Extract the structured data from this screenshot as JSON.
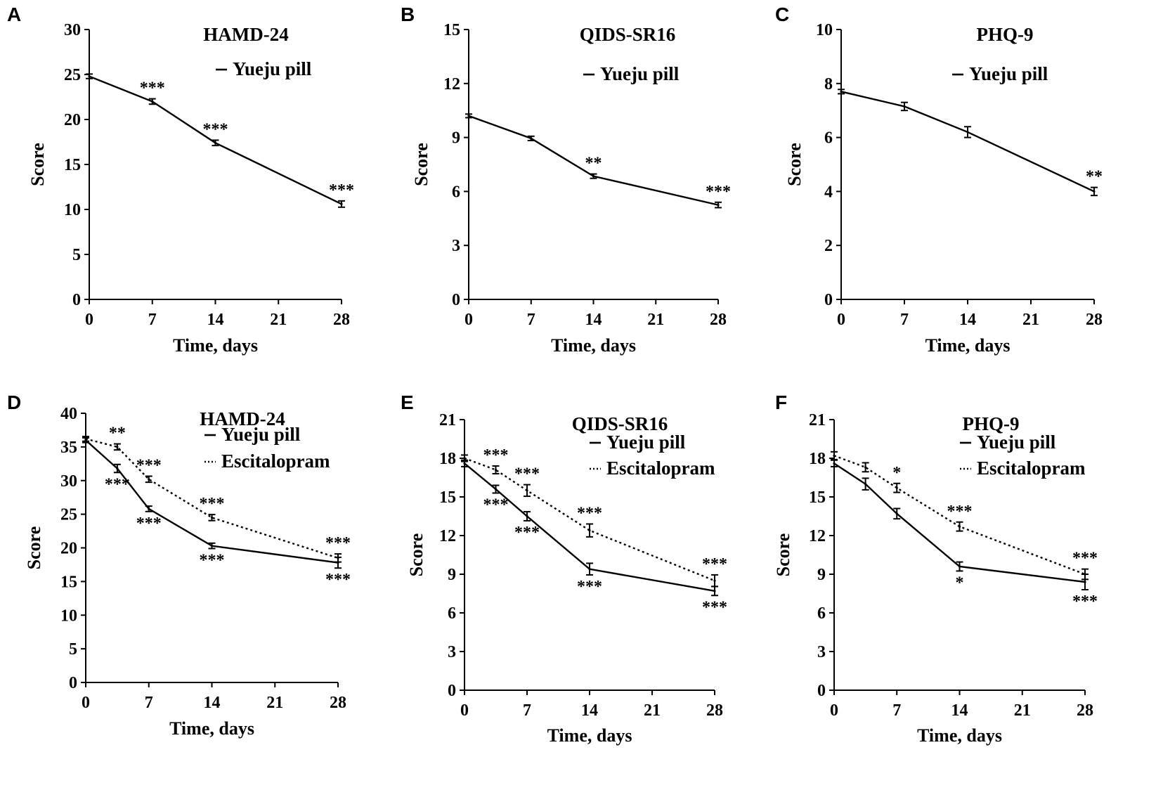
{
  "figure": {
    "panels": [
      "A",
      "B",
      "C",
      "D",
      "E",
      "F"
    ]
  },
  "chart_data": [
    {
      "panel": "A",
      "type": "line",
      "title": "HAMD-24",
      "xlabel": "Time, days",
      "ylabel": "Score",
      "xlim": [
        0,
        28
      ],
      "ylim": [
        0,
        30
      ],
      "xticks": [
        "0",
        "7",
        "14",
        "21",
        "28"
      ],
      "yticks": [
        "0",
        "5",
        "10",
        "15",
        "20",
        "25",
        "30"
      ],
      "series": [
        {
          "name": "Yueju pill",
          "style": "solid",
          "x": [
            0,
            7,
            14,
            28
          ],
          "values": [
            24.8,
            22.0,
            17.4,
            10.6
          ],
          "errors": [
            0.25,
            0.3,
            0.3,
            0.35
          ],
          "significance": [
            "",
            "***",
            "***",
            "***"
          ],
          "sig_position": "above"
        }
      ]
    },
    {
      "panel": "B",
      "type": "line",
      "title": "QIDS-SR16",
      "xlabel": "Time, days",
      "ylabel": "Score",
      "xlim": [
        0,
        28
      ],
      "ylim": [
        0,
        15
      ],
      "xticks": [
        "0",
        "7",
        "14",
        "21",
        "28"
      ],
      "yticks": [
        "0",
        "3",
        "6",
        "9",
        "12",
        "15"
      ],
      "series": [
        {
          "name": "Yueju pill",
          "style": "solid",
          "x": [
            0,
            7,
            14,
            28
          ],
          "values": [
            10.2,
            8.95,
            6.85,
            5.25
          ],
          "errors": [
            0.1,
            0.12,
            0.12,
            0.15
          ],
          "significance": [
            "",
            "",
            "**",
            "***"
          ],
          "sig_position": "above"
        }
      ]
    },
    {
      "panel": "C",
      "type": "line",
      "title": "PHQ-9",
      "xlabel": "Time, days",
      "ylabel": "Score",
      "xlim": [
        0,
        28
      ],
      "ylim": [
        0,
        10
      ],
      "xticks": [
        "0",
        "7",
        "14",
        "21",
        "28"
      ],
      "yticks": [
        "0",
        "2",
        "4",
        "6",
        "8",
        "10"
      ],
      "series": [
        {
          "name": "Yueju pill",
          "style": "solid",
          "x": [
            0,
            7,
            14,
            28
          ],
          "values": [
            7.7,
            7.15,
            6.2,
            4.0
          ],
          "errors": [
            0.08,
            0.15,
            0.2,
            0.15
          ],
          "significance": [
            "",
            "",
            "",
            "**"
          ],
          "sig_position": "above"
        }
      ]
    },
    {
      "panel": "D",
      "type": "line",
      "title": "HAMD-24",
      "xlabel": "Time, days",
      "ylabel": "Score",
      "xlim": [
        0,
        28
      ],
      "ylim": [
        0,
        40
      ],
      "xticks": [
        "0",
        "7",
        "14",
        "21",
        "28"
      ],
      "yticks": [
        "0",
        "5",
        "10",
        "15",
        "20",
        "25",
        "30",
        "35",
        "40"
      ],
      "series": [
        {
          "name": "Yueju pill",
          "style": "solid",
          "x": [
            0,
            3.5,
            7,
            14,
            28
          ],
          "values": [
            36.0,
            31.8,
            25.8,
            20.3,
            17.8
          ],
          "errors": [
            0.35,
            0.6,
            0.4,
            0.4,
            0.8
          ],
          "significance": [
            "",
            "***",
            "***",
            "***",
            "***"
          ],
          "sig_position": "below"
        },
        {
          "name": "Escitalopram",
          "style": "dotted",
          "x": [
            0,
            3.5,
            7,
            14,
            28
          ],
          "values": [
            36.2,
            35.0,
            30.2,
            24.5,
            18.5
          ],
          "errors": [
            0.35,
            0.45,
            0.45,
            0.45,
            0.6
          ],
          "significance": [
            "",
            "**",
            "***",
            "***",
            "***"
          ],
          "sig_position": "above"
        }
      ]
    },
    {
      "panel": "E",
      "type": "line",
      "title": "QIDS-SR16",
      "xlabel": "Time, days",
      "ylabel": "Score",
      "xlim": [
        0,
        28
      ],
      "ylim": [
        0,
        21
      ],
      "xticks": [
        "0",
        "7",
        "14",
        "21",
        "28"
      ],
      "yticks": [
        "0",
        "3",
        "6",
        "9",
        "12",
        "15",
        "18",
        "21"
      ],
      "series": [
        {
          "name": "Yueju pill",
          "style": "solid",
          "x": [
            0,
            3.5,
            7,
            14,
            28
          ],
          "values": [
            17.6,
            15.6,
            13.5,
            9.4,
            7.7
          ],
          "errors": [
            0.25,
            0.3,
            0.35,
            0.45,
            0.35
          ],
          "significance": [
            "",
            "***",
            "***",
            "***",
            "***"
          ],
          "sig_position": "below"
        },
        {
          "name": "Escitalopram",
          "style": "dotted",
          "x": [
            0,
            3.5,
            7,
            14,
            28
          ],
          "values": [
            18.0,
            17.1,
            15.5,
            12.4,
            8.5
          ],
          "errors": [
            0.25,
            0.3,
            0.45,
            0.5,
            0.45
          ],
          "significance": [
            "",
            "***",
            "***",
            "***",
            "***"
          ],
          "sig_position": "above"
        }
      ]
    },
    {
      "panel": "F",
      "type": "line",
      "title": "PHQ-9",
      "xlabel": "Time, days",
      "ylabel": "Score",
      "xlim": [
        0,
        28
      ],
      "ylim": [
        0,
        21
      ],
      "xticks": [
        "0",
        "7",
        "14",
        "21",
        "28"
      ],
      "yticks": [
        "0",
        "3",
        "6",
        "9",
        "12",
        "15",
        "18",
        "21"
      ],
      "series": [
        {
          "name": "Yueju pill",
          "style": "solid",
          "x": [
            0,
            3.5,
            7,
            14,
            28
          ],
          "values": [
            17.6,
            16.0,
            13.7,
            9.6,
            8.4
          ],
          "errors": [
            0.25,
            0.45,
            0.4,
            0.35,
            0.6
          ],
          "significance": [
            "",
            "",
            "",
            "*",
            "***"
          ],
          "sig_position": "below"
        },
        {
          "name": "Escitalopram",
          "style": "dotted",
          "x": [
            0,
            3.5,
            7,
            14,
            28
          ],
          "values": [
            18.2,
            17.3,
            15.7,
            12.7,
            9.0
          ],
          "errors": [
            0.3,
            0.35,
            0.35,
            0.35,
            0.4
          ],
          "significance": [
            "",
            "",
            "*",
            "***",
            "***"
          ],
          "sig_position": "above"
        }
      ]
    }
  ]
}
